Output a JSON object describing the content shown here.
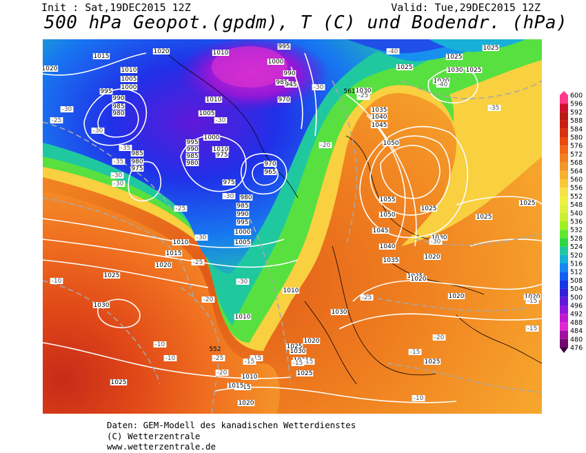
{
  "header": {
    "init": "Init : Sat,19DEC2015 12Z",
    "valid": "Valid: Tue,29DEC2015 12Z",
    "title": "500 hPa Geopot.(gpdm), T (C) und Bodendr. (hPa)"
  },
  "credits": {
    "line1": "Daten: GEM-Modell des kanadischen Wetterdienstes",
    "line2": "(C) Wetterzentrale",
    "line3": "www.wetterzentrale.de"
  },
  "legend": {
    "levels": [
      "600",
      "596",
      "592",
      "588",
      "584",
      "580",
      "576",
      "572",
      "568",
      "564",
      "560",
      "556",
      "552",
      "548",
      "540",
      "536",
      "532",
      "528",
      "524",
      "520",
      "516",
      "512",
      "508",
      "504",
      "500",
      "496",
      "492",
      "488",
      "484",
      "480",
      "476"
    ],
    "colors": [
      "#ff3a8a",
      "#d01030",
      "#b81818",
      "#c82010",
      "#d83010",
      "#e84a10",
      "#f06818",
      "#f08020",
      "#f09828",
      "#f8b030",
      "#f8c838",
      "#f8e048",
      "#f0f040",
      "#e0f040",
      "#c8f030",
      "#9ef020",
      "#60e830",
      "#30d840",
      "#20c8a0",
      "#18b0d8",
      "#1888f0",
      "#1060f0",
      "#1838e8",
      "#3020d8",
      "#6018d8",
      "#9018d8",
      "#c018d0",
      "#e028d0",
      "#a010a0",
      "#700870",
      "#400040"
    ]
  },
  "map_labels": {
    "pressure": [
      "1020",
      "1015",
      "1010",
      "1005",
      "1000",
      "995",
      "990",
      "985",
      "980",
      "1020",
      "1010",
      "1010",
      "995",
      "1000",
      "990",
      "985",
      "945",
      "970",
      "1010",
      "1005",
      "1000",
      "995",
      "990",
      "985",
      "980",
      "975",
      "970",
      "965",
      "985",
      "980",
      "975",
      "975",
      "980",
      "985",
      "990",
      "995",
      "1000",
      "1005",
      "1010",
      "1015",
      "1020",
      "1025",
      "1030",
      "1010",
      "1010",
      "1025",
      "1030",
      "1035",
      "1040",
      "1045",
      "1050",
      "1055",
      "1050",
      "1045",
      "1040",
      "1035",
      "1030",
      "1025",
      "1020",
      "1025",
      "1030",
      "1010",
      "1015",
      "1020",
      "1025",
      "1030",
      "1035",
      "1025",
      "1020",
      "1010",
      "1025",
      "1025",
      "1025",
      "1025",
      "1020",
      "1020",
      "1025",
      "1025",
      "1020",
      "1020",
      "1025",
      "1030",
      "1015",
      "1020",
      "1025"
    ],
    "temperature": [
      "-30",
      "-25",
      "-30",
      "-35",
      "-30",
      "-30",
      "-25",
      "-30",
      "-30",
      "-35",
      "-30",
      "-25",
      "-20",
      "-40",
      "-40",
      "-35",
      "-25",
      "-30",
      "-30",
      "-25",
      "-20",
      "-15",
      "-10",
      "-10",
      "-15",
      "-15",
      "-10",
      "-20",
      "-25",
      "-20",
      "-15",
      "-10",
      "-15",
      "-15",
      "-25",
      "-30",
      "-10",
      "-15"
    ],
    "geopotential": [
      "561",
      "552"
    ]
  }
}
